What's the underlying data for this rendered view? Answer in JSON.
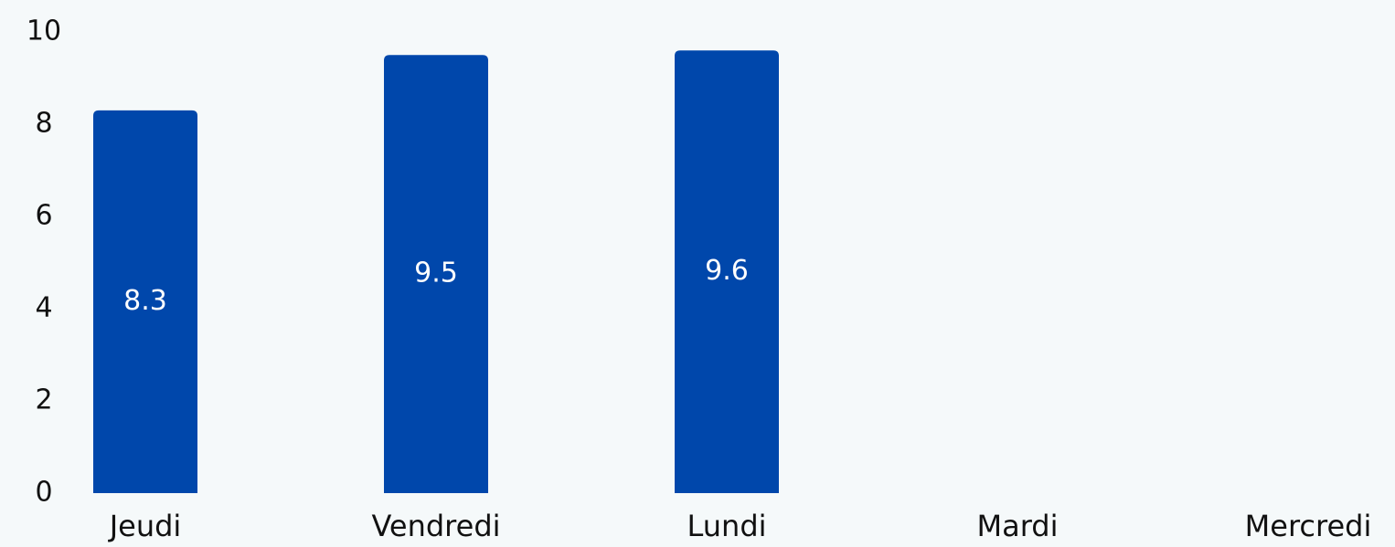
{
  "chart_data": {
    "type": "bar",
    "categories": [
      "Jeudi",
      "Vendredi",
      "Lundi",
      "Mardi",
      "Mercredi"
    ],
    "values": [
      8.3,
      9.5,
      9.6,
      null,
      null
    ],
    "color": "#0047ab",
    "ylim": [
      0,
      10
    ],
    "yticks": [
      0,
      2,
      4,
      6,
      8,
      10
    ],
    "grid": false
  }
}
